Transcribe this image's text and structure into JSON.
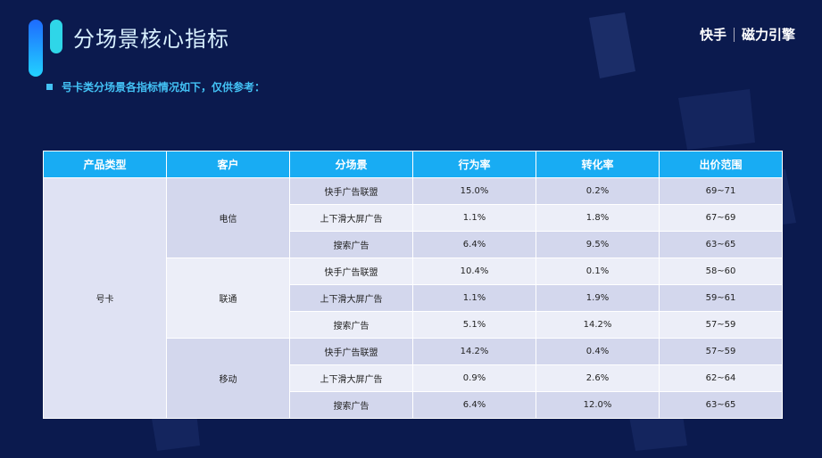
{
  "header": {
    "title": "分场景核心指标",
    "brand": "快手",
    "brand2": "磁力引擎",
    "subtitle": "号卡类分场景各指标情况如下，仅供参考："
  },
  "table": {
    "headers": [
      "产品类型",
      "客户",
      "分场景",
      "行为率",
      "转化率",
      "出价范围"
    ],
    "product": "号卡",
    "groups": [
      {
        "carrier": "电信",
        "rows": [
          [
            "快手广告联盟",
            "15.0%",
            "0.2%",
            "69~71"
          ],
          [
            "上下滑大屏广告",
            "1.1%",
            "1.8%",
            "67~69"
          ],
          [
            "搜索广告",
            "6.4%",
            "9.5%",
            "63~65"
          ]
        ]
      },
      {
        "carrier": "联通",
        "rows": [
          [
            "快手广告联盟",
            "10.4%",
            "0.1%",
            "58~60"
          ],
          [
            "上下滑大屏广告",
            "1.1%",
            "1.9%",
            "59~61"
          ],
          [
            "搜索广告",
            "5.1%",
            "14.2%",
            "57~59"
          ]
        ]
      },
      {
        "carrier": "移动",
        "rows": [
          [
            "快手广告联盟",
            "14.2%",
            "0.4%",
            "57~59"
          ],
          [
            "上下滑大屏广告",
            "0.9%",
            "2.6%",
            "62~64"
          ],
          [
            "搜索广告",
            "6.4%",
            "12.0%",
            "63~65"
          ]
        ]
      }
    ]
  }
}
